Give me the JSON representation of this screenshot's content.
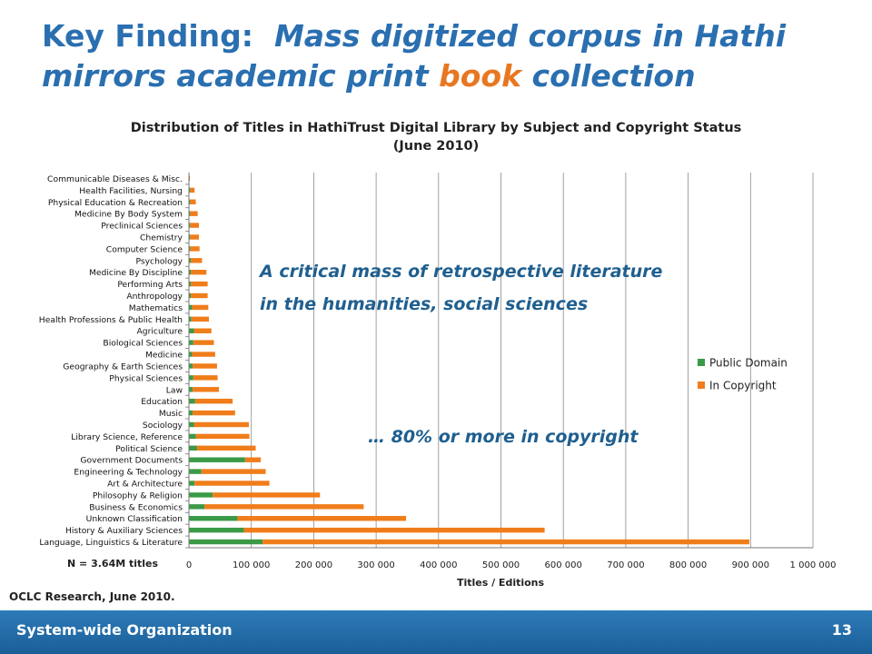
{
  "slide": {
    "title_prefix": "Key Finding:",
    "title_rest_1": "Mass digitized corpus in Hathi",
    "title_line2_a": "mirrors academic print ",
    "title_line2_hl": "book",
    "title_line2_b": " collection"
  },
  "annotations": {
    "line1": "A critical mass of retrospective literature",
    "line2": "in the humanities, social sciences",
    "copyright_note": "… 80% or more in copyright"
  },
  "notes": {
    "n_total": "N = 3.64M titles",
    "source": "OCLC Research, June 2010."
  },
  "footer": {
    "left": "System-wide Organization",
    "page_number": "13"
  },
  "colors": {
    "title_blue": "#2a6fb0",
    "accent_orange": "#e87722",
    "public_domain": "#3a9a47",
    "in_copyright": "#f07d1a",
    "footer_blue": "#1b5f98"
  },
  "chart_data": {
    "type": "bar",
    "orientation": "horizontal",
    "stacked": true,
    "title_line1": "Distribution of Titles in HathiTrust Digital Library by  Subject and Copyright Status",
    "title_line2": "(June 2010)",
    "xlabel": "Titles / Editions",
    "ylabel": "",
    "xlim": [
      0,
      1000000
    ],
    "xticks": [
      0,
      100000,
      200000,
      300000,
      400000,
      500000,
      600000,
      700000,
      800000,
      900000,
      1000000
    ],
    "xtick_labels": [
      "0",
      "100 000",
      "200 000",
      "300 000",
      "400 000",
      "500 000",
      "600 000",
      "700 000",
      "800 000",
      "900 000",
      "1 000 000"
    ],
    "grid": "vertical",
    "legend_position": "right",
    "categories": [
      "Communicable Diseases & Misc.",
      "Health Facilities, Nursing",
      "Physical Education & Recreation",
      "Medicine By Body System",
      "Preclinical Sciences",
      "Chemistry",
      "Computer Science",
      "Psychology",
      "Medicine By Discipline",
      "Performing Arts",
      "Anthropology",
      "Mathematics",
      "Health Professions & Public Health",
      "Agriculture",
      "Biological Sciences",
      "Medicine",
      "Geography & Earth Sciences",
      "Physical Sciences",
      "Law",
      "Education",
      "Music",
      "Sociology",
      "Library Science, Reference",
      "Political Science",
      "Government Documents",
      "Engineering & Technology",
      "Art & Architecture",
      "Philosophy & Religion",
      "Business & Economics",
      "Unknown Classification",
      "History & Auxiliary Sciences",
      "Language, Linguistics & Literature"
    ],
    "series": [
      {
        "name": "Public Domain",
        "color": "#3a9a47",
        "values": [
          500,
          2000,
          2000,
          2000,
          2000,
          2000,
          2000,
          3000,
          3000,
          3000,
          3000,
          5000,
          4000,
          8000,
          7000,
          5000,
          6000,
          7000,
          6000,
          10000,
          6000,
          8000,
          11000,
          13000,
          90000,
          20000,
          9000,
          38000,
          25000,
          78000,
          88000,
          118000
        ]
      },
      {
        "name": "In Copyright",
        "color": "#f07d1a",
        "values": [
          1000,
          7000,
          9000,
          12000,
          14000,
          14000,
          15000,
          18000,
          25000,
          27000,
          27000,
          26000,
          28000,
          28000,
          33000,
          37000,
          39000,
          39000,
          42000,
          60000,
          68000,
          88000,
          86000,
          94000,
          25000,
          103000,
          120000,
          172000,
          255000,
          270000,
          482000,
          780000
        ]
      }
    ]
  }
}
